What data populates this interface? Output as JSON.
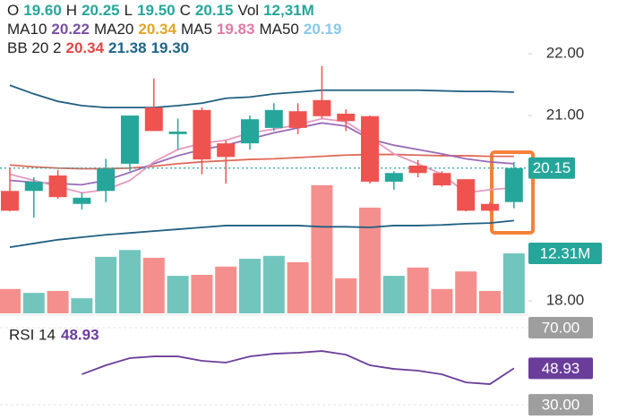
{
  "chart_data": {
    "type": "candlestick",
    "legend_rows": [
      [
        {
          "text": "O",
          "color": "#222222"
        },
        {
          "text": "19.60",
          "color": "#26a69a"
        },
        {
          "text": "H",
          "color": "#222222"
        },
        {
          "text": "20.25",
          "color": "#26a69a"
        },
        {
          "text": "L",
          "color": "#222222"
        },
        {
          "text": "19.50",
          "color": "#26a69a"
        },
        {
          "text": "C",
          "color": "#222222"
        },
        {
          "text": "20.15",
          "color": "#26a69a"
        },
        {
          "text": "Vol",
          "color": "#222222"
        },
        {
          "text": "12,31M",
          "color": "#26a69a"
        }
      ],
      [
        {
          "text": "MA10",
          "color": "#222222"
        },
        {
          "text": "20.22",
          "color": "#7a4fa8"
        },
        {
          "text": "MA20",
          "color": "#222222"
        },
        {
          "text": "20.34",
          "color": "#e0a526"
        },
        {
          "text": "MA5",
          "color": "#222222"
        },
        {
          "text": "19.83",
          "color": "#e07aa8"
        },
        {
          "text": "MA50",
          "color": "#222222"
        },
        {
          "text": "20.19",
          "color": "#86c8e8"
        }
      ],
      [
        {
          "text": "BB 20 2",
          "color": "#222222"
        },
        {
          "text": "20.34",
          "color": "#e04848"
        },
        {
          "text": "21.38",
          "color": "#1f6488"
        },
        {
          "text": "19.30",
          "color": "#1f6488"
        }
      ]
    ],
    "open": [
      19.78,
      19.78,
      20.03,
      19.57,
      19.78,
      20.22,
      21.13,
      20.7,
      21.09,
      20.55,
      20.55,
      20.8,
      21.07,
      21.25,
      21.03,
      20.99,
      19.93,
      20.19,
      20.07,
      19.97,
      19.57,
      19.6
    ],
    "high": [
      20.16,
      20.0,
      20.12,
      19.75,
      20.3,
      21.0,
      21.6,
      20.95,
      21.13,
      20.6,
      21.0,
      21.2,
      21.2,
      21.8,
      21.1,
      21.0,
      20.1,
      20.28,
      20.1,
      19.97,
      19.6,
      20.25
    ],
    "low": [
      19.45,
      19.35,
      19.65,
      19.48,
      19.6,
      20.1,
      20.75,
      20.45,
      20.05,
      19.9,
      20.45,
      20.75,
      20.7,
      20.95,
      20.75,
      19.9,
      19.8,
      20.0,
      19.85,
      19.45,
      19.45,
      19.5
    ],
    "close": [
      19.46,
      19.93,
      19.68,
      19.67,
      20.14,
      21.0,
      20.75,
      20.74,
      20.29,
      20.33,
      20.94,
      21.09,
      20.8,
      20.99,
      20.91,
      19.93,
      20.07,
      20.07,
      19.87,
      19.46,
      19.46,
      20.15
    ],
    "up_color": "#26a69a",
    "down_color": "#ef5350",
    "ylim": [
      17.77,
      22.87
    ],
    "yticks": [
      {
        "value": 22,
        "label": "22.00"
      },
      {
        "value": 21,
        "label": "21.00"
      },
      {
        "value": 18,
        "label": "18.00"
      }
    ],
    "lines": [
      {
        "color": "#1f5f80",
        "values": [
          21.49,
          21.35,
          21.23,
          21.16,
          21.13,
          21.13,
          21.13,
          21.16,
          21.2,
          21.28,
          21.3,
          21.35,
          21.38,
          21.41,
          21.41,
          21.41,
          21.41,
          21.41,
          21.4,
          21.39,
          21.39,
          21.38
        ]
      },
      {
        "color": "#1f5f80",
        "values": [
          18.87,
          18.93,
          18.99,
          19.03,
          19.07,
          19.1,
          19.13,
          19.16,
          19.19,
          19.22,
          19.22,
          19.22,
          19.22,
          19.2,
          19.2,
          19.19,
          19.22,
          19.22,
          19.23,
          19.25,
          19.26,
          19.3
        ]
      },
      {
        "color": "#e06a5a",
        "values": [
          20.2,
          20.17,
          20.15,
          20.14,
          20.14,
          20.15,
          20.18,
          20.22,
          20.25,
          20.27,
          20.29,
          20.3,
          20.32,
          20.34,
          20.36,
          20.37,
          20.37,
          20.36,
          20.35,
          20.35,
          20.34,
          20.34
        ]
      },
      {
        "color": "#9a6ab8",
        "values": [
          19.95,
          19.92,
          19.9,
          19.88,
          19.95,
          20.08,
          20.22,
          20.35,
          20.45,
          20.52,
          20.62,
          20.72,
          20.8,
          20.88,
          20.83,
          20.62,
          20.52,
          20.45,
          20.38,
          20.3,
          20.25,
          20.22
        ]
      },
      {
        "color": "#e69ac0",
        "values": [
          20.05,
          19.95,
          19.85,
          19.75,
          19.8,
          19.95,
          20.25,
          20.45,
          20.55,
          20.6,
          20.72,
          20.78,
          20.85,
          20.95,
          20.9,
          20.65,
          20.38,
          20.22,
          20.05,
          19.75,
          19.8,
          19.83
        ]
      }
    ],
    "volume": {
      "values": [
        5.0,
        4.2,
        4.6,
        3.1,
        11.6,
        13.0,
        11.4,
        7.7,
        7.9,
        9.6,
        11.2,
        11.8,
        10.5,
        26.3,
        7.2,
        21.7,
        7.7,
        9.4,
        5.0,
        8.6,
        4.6,
        12.31
      ],
      "ylim": [
        0,
        64.3
      ],
      "last_label": "12.31M"
    },
    "rsi": {
      "label": "RSI 14",
      "color": "#6a3d9a",
      "values": [
        null,
        null,
        null,
        45.8,
        50.5,
        54.2,
        55.1,
        55.1,
        52.8,
        51.9,
        55.1,
        56.5,
        57.0,
        57.9,
        56.0,
        50.5,
        48.6,
        47.7,
        45.8,
        41.6,
        40.7,
        48.93
      ],
      "ylim": [
        22.6,
        72.8
      ],
      "ticks": [
        {
          "value": 70,
          "label": "70.00"
        },
        {
          "value": 30,
          "label": "30.00"
        }
      ]
    }
  }
}
